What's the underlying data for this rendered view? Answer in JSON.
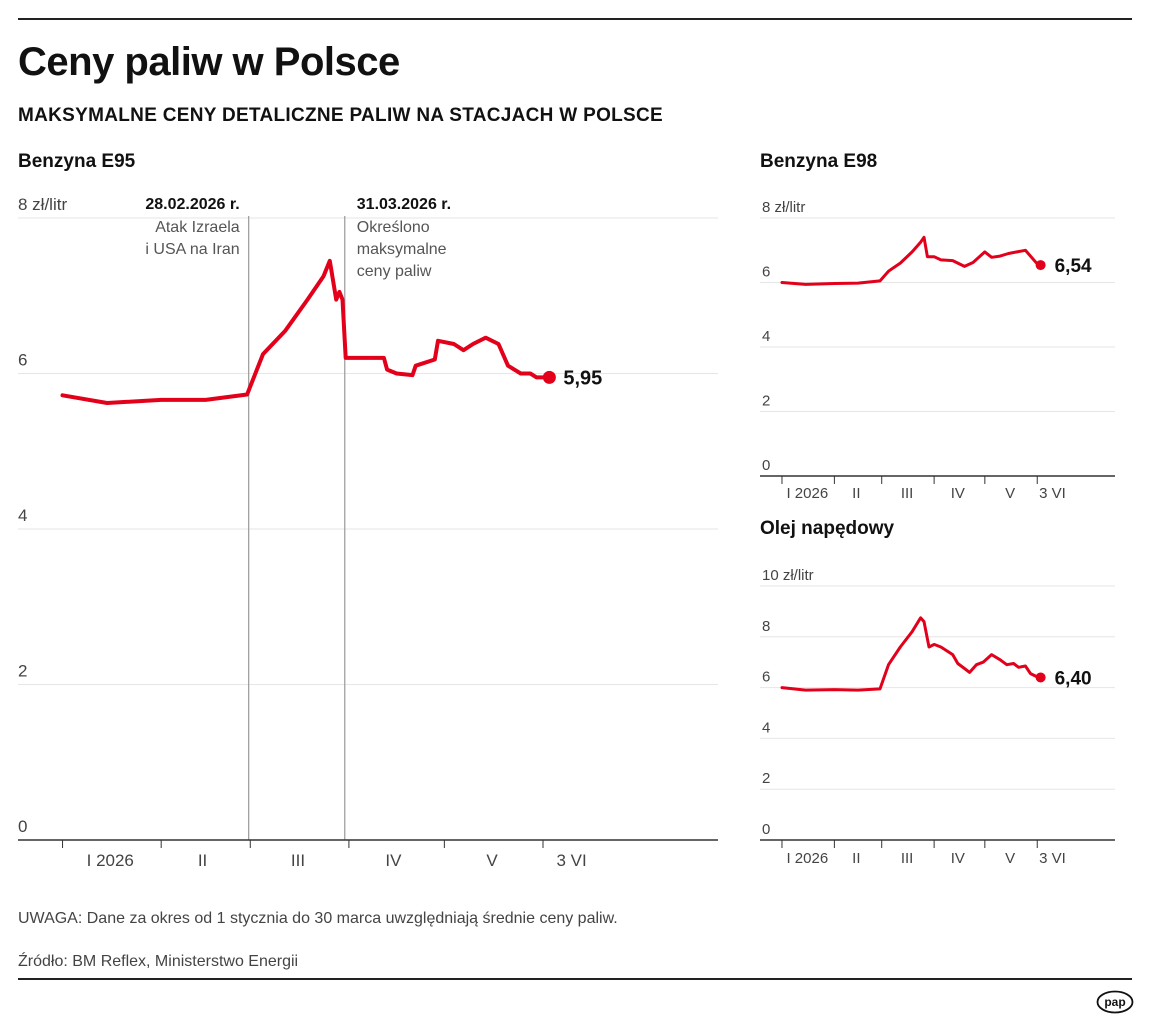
{
  "header": {
    "title": "Ceny paliw w Polsce",
    "subtitle": "MAKSYMALNE CENY DETALICZNE PALIW NA STACJACH W POLSCE"
  },
  "colors": {
    "line": "#e2001a",
    "axis": "#333333",
    "grid": "#e6e6e6",
    "event": "#999999"
  },
  "chart_data": [
    {
      "type": "line",
      "title": "Benzyna E95",
      "ylabel": "zł/litr",
      "ylim": [
        0,
        8
      ],
      "yticks": [
        "8 zł/litr",
        "6",
        "4",
        "2",
        "0"
      ],
      "xticks": [
        "I 2026",
        "II",
        "III",
        "IV",
        "V",
        "3 VI"
      ],
      "grid": true,
      "series": [
        {
          "x": [
            "01-01",
            "01-15",
            "02-01",
            "02-15",
            "02-28",
            "03-05",
            "03-12",
            "03-19",
            "03-24",
            "03-26",
            "03-28",
            "03-29",
            "03-30",
            "03-31",
            "04-01",
            "04-05",
            "04-12",
            "04-13",
            "04-16",
            "04-21",
            "04-22",
            "04-28",
            "04-29",
            "05-04",
            "05-07",
            "05-10",
            "05-14",
            "05-18",
            "05-21",
            "05-25",
            "05-28",
            "05-30",
            "06-01",
            "06-03"
          ],
          "values": [
            5.72,
            5.62,
            5.66,
            5.66,
            5.73,
            6.25,
            6.55,
            6.95,
            7.25,
            7.45,
            6.95,
            7.05,
            6.95,
            6.2,
            6.2,
            6.2,
            6.2,
            6.05,
            6.0,
            5.98,
            6.1,
            6.18,
            6.42,
            6.38,
            6.3,
            6.38,
            6.46,
            6.38,
            6.1,
            6.0,
            6.0,
            5.95,
            5.95,
            5.95
          ]
        }
      ],
      "annotations": [
        {
          "date": "28.02.2026 r.",
          "text": [
            "Atak Izraela",
            "i USA na Iran"
          ]
        },
        {
          "date": "31.03.2026 r.",
          "text": [
            "Określono",
            "maksymalne",
            "ceny paliw"
          ]
        }
      ],
      "last_label": "5,95"
    },
    {
      "type": "line",
      "title": "Benzyna E98",
      "ylabel": "zł/litr",
      "ylim": [
        0,
        8
      ],
      "yticks": [
        "8 zł/litr",
        "6",
        "4",
        "2",
        "0"
      ],
      "xticks": [
        "I 2026",
        "II",
        "III",
        "IV",
        "V",
        "3 VI"
      ],
      "grid": true,
      "series": [
        {
          "x": [
            "01-01",
            "01-15",
            "02-01",
            "02-15",
            "02-28",
            "03-05",
            "03-12",
            "03-19",
            "03-24",
            "03-26",
            "03-28",
            "04-01",
            "04-05",
            "04-12",
            "04-19",
            "04-24",
            "05-01",
            "05-05",
            "05-10",
            "05-15",
            "05-20",
            "05-25",
            "05-28",
            "06-01",
            "06-03"
          ],
          "values": [
            6.0,
            5.94,
            5.97,
            5.98,
            6.05,
            6.35,
            6.6,
            6.95,
            7.25,
            7.4,
            6.8,
            6.8,
            6.7,
            6.68,
            6.5,
            6.62,
            6.95,
            6.78,
            6.82,
            6.9,
            6.95,
            7.0,
            6.82,
            6.58,
            6.54
          ]
        }
      ],
      "last_label": "6,54"
    },
    {
      "type": "line",
      "title": "Olej napędowy",
      "ylabel": "zł/litr",
      "ylim": [
        0,
        10
      ],
      "yticks": [
        "10 zł/litr",
        "8",
        "6",
        "4",
        "2",
        "0"
      ],
      "xticks": [
        "I 2026",
        "II",
        "III",
        "IV",
        "V",
        "3 VI"
      ],
      "grid": true,
      "series": [
        {
          "x": [
            "01-01",
            "01-15",
            "02-01",
            "02-15",
            "02-28",
            "03-05",
            "03-12",
            "03-19",
            "03-24",
            "03-26",
            "03-29",
            "04-01",
            "04-05",
            "04-12",
            "04-15",
            "04-19",
            "04-22",
            "04-26",
            "04-30",
            "05-05",
            "05-10",
            "05-14",
            "05-18",
            "05-21",
            "05-25",
            "05-28",
            "06-01",
            "06-03"
          ],
          "values": [
            6.0,
            5.9,
            5.92,
            5.9,
            5.95,
            6.9,
            7.6,
            8.2,
            8.75,
            8.6,
            7.6,
            7.7,
            7.6,
            7.3,
            6.95,
            6.75,
            6.6,
            6.9,
            7.0,
            7.3,
            7.1,
            6.9,
            6.95,
            6.8,
            6.85,
            6.55,
            6.42,
            6.4
          ]
        }
      ],
      "last_label": "6,40"
    }
  ],
  "footer": {
    "note": "UWAGA: Dane za okres od 1 stycznia do 30 marca uwzględniają średnie ceny paliw.",
    "source": "Źródło: BM Reflex, Ministerstwo Energii",
    "logo": "pap"
  }
}
